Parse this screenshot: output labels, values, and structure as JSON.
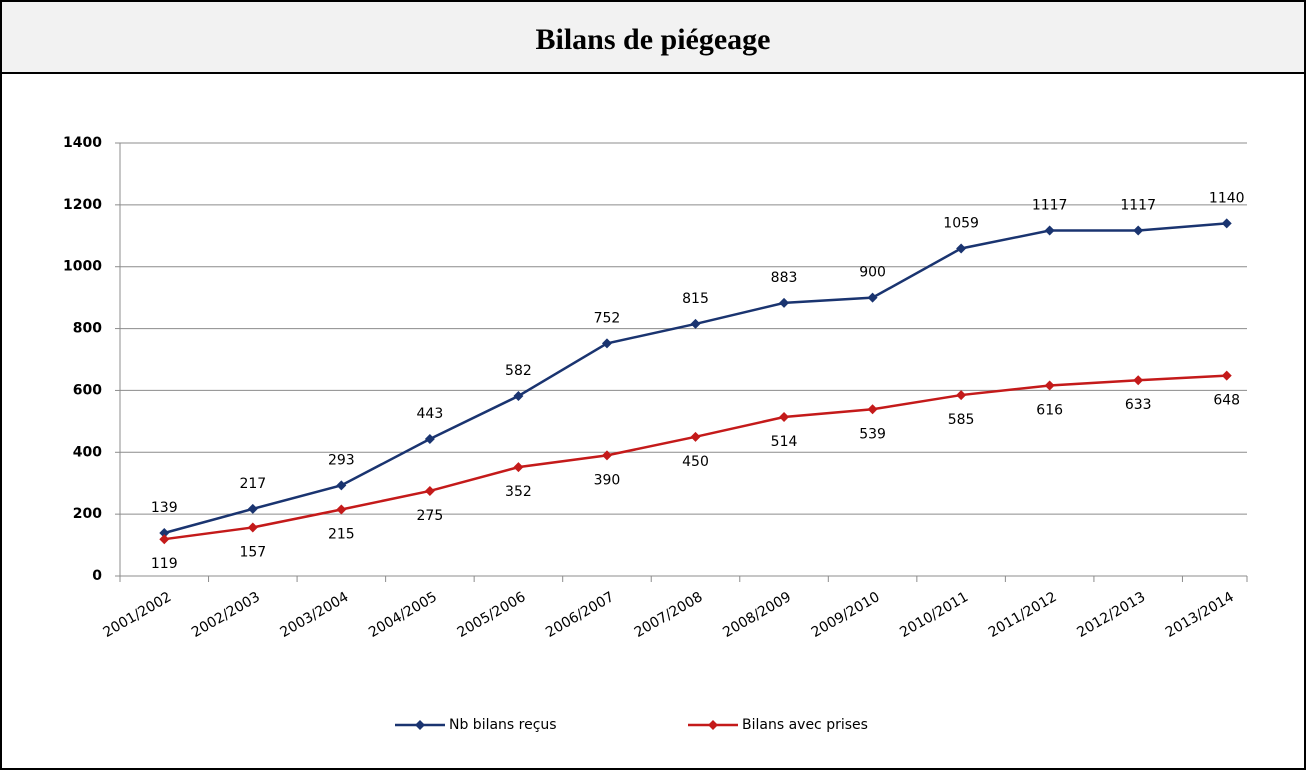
{
  "chart_data": {
    "type": "line",
    "title": "Bilans de piégeage",
    "categories": [
      "2001/2002",
      "2002/2003",
      "2003/2004",
      "2004/2005",
      "2005/2006",
      "2006/2007",
      "2007/2008",
      "2008/2009",
      "2009/2010",
      "2010/2011",
      "2011/2012",
      "2012/2013",
      "2013/2014"
    ],
    "series": [
      {
        "name": "Nb bilans reçus",
        "color": "#1a3470",
        "values": [
          139,
          217,
          293,
          443,
          582,
          752,
          815,
          883,
          900,
          1059,
          1117,
          1117,
          1140
        ]
      },
      {
        "name": "Bilans avec prises",
        "color": "#c41a1a",
        "values": [
          119,
          157,
          215,
          275,
          352,
          390,
          450,
          514,
          539,
          585,
          616,
          633,
          648
        ]
      }
    ],
    "ylim": [
      0,
      1400
    ],
    "yticks": [
      0,
      200,
      400,
      600,
      800,
      1000,
      1200,
      1400
    ],
    "grid": true,
    "legend": "bottom"
  }
}
